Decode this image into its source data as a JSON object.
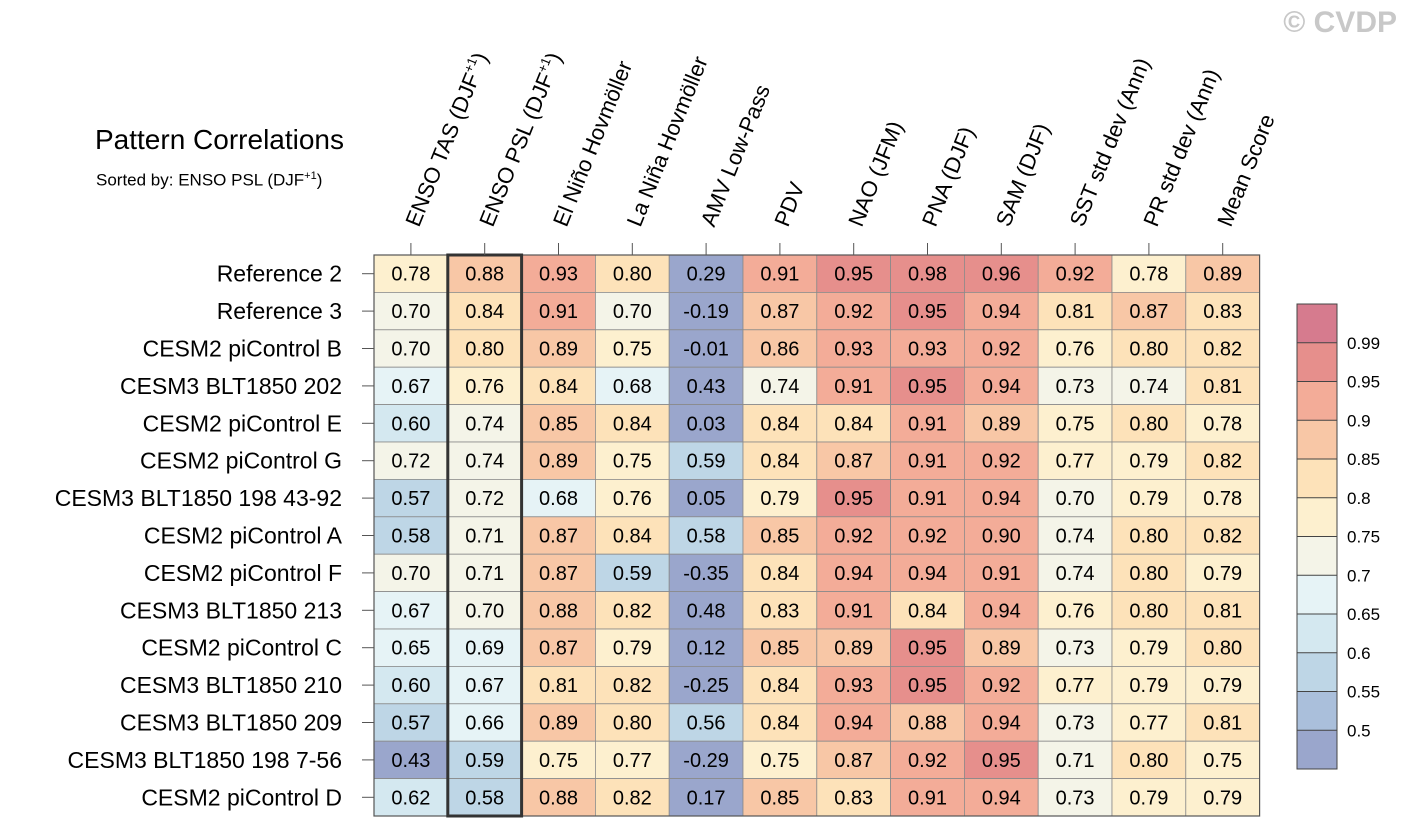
{
  "watermark": "© CVDP",
  "title": "Pattern Correlations",
  "subtitle_prefix": "Sorted by: ENSO PSL (DJF",
  "subtitle_sup": "+1",
  "subtitle_suffix": ")",
  "chart_data": {
    "type": "heatmap",
    "title": "Pattern Correlations",
    "sorted_by": "ENSO PSL (DJF+1)",
    "highlighted_column": 1,
    "columns": [
      {
        "label": "ENSO TAS (DJF",
        "sup": "+1",
        "suffix": ")"
      },
      {
        "label": "ENSO PSL (DJF",
        "sup": "+1",
        "suffix": ")"
      },
      {
        "label": "El Niño Hovmöller",
        "sup": "",
        "suffix": ""
      },
      {
        "label": "La Niña Hovmöller",
        "sup": "",
        "suffix": ""
      },
      {
        "label": "AMV Low-Pass",
        "sup": "",
        "suffix": ""
      },
      {
        "label": "PDV",
        "sup": "",
        "suffix": ""
      },
      {
        "label": "NAO (JFM)",
        "sup": "",
        "suffix": ""
      },
      {
        "label": "PNA (DJF)",
        "sup": "",
        "suffix": ""
      },
      {
        "label": "SAM (DJF)",
        "sup": "",
        "suffix": ""
      },
      {
        "label": "SST std dev (Ann)",
        "sup": "",
        "suffix": ""
      },
      {
        "label": "PR std dev (Ann)",
        "sup": "",
        "suffix": ""
      },
      {
        "label": "Mean Score",
        "sup": "",
        "suffix": ""
      }
    ],
    "rows": [
      "Reference 2",
      "Reference 3",
      "CESM2 piControl B",
      "CESM3 BLT1850 202",
      "CESM2 piControl E",
      "CESM2 piControl G",
      "CESM3 BLT1850 198 43-92",
      "CESM2 piControl A",
      "CESM2 piControl F",
      "CESM3 BLT1850 213",
      "CESM2 piControl C",
      "CESM3 BLT1850 210",
      "CESM3 BLT1850 209",
      "CESM3 BLT1850 198 7-56",
      "CESM2 piControl D"
    ],
    "values": [
      [
        "0.78",
        "0.88",
        "0.93",
        "0.80",
        "0.29",
        "0.91",
        "0.95",
        "0.98",
        "0.96",
        "0.92",
        "0.78",
        "0.89"
      ],
      [
        "0.70",
        "0.84",
        "0.91",
        "0.70",
        "-0.19",
        "0.87",
        "0.92",
        "0.95",
        "0.94",
        "0.81",
        "0.87",
        "0.83"
      ],
      [
        "0.70",
        "0.80",
        "0.89",
        "0.75",
        "-0.01",
        "0.86",
        "0.93",
        "0.93",
        "0.92",
        "0.76",
        "0.80",
        "0.82"
      ],
      [
        "0.67",
        "0.76",
        "0.84",
        "0.68",
        "0.43",
        "0.74",
        "0.91",
        "0.95",
        "0.94",
        "0.73",
        "0.74",
        "0.81"
      ],
      [
        "0.60",
        "0.74",
        "0.85",
        "0.84",
        "0.03",
        "0.84",
        "0.84",
        "0.91",
        "0.89",
        "0.75",
        "0.80",
        "0.78"
      ],
      [
        "0.72",
        "0.74",
        "0.89",
        "0.75",
        "0.59",
        "0.84",
        "0.87",
        "0.91",
        "0.92",
        "0.77",
        "0.79",
        "0.82"
      ],
      [
        "0.57",
        "0.72",
        "0.68",
        "0.76",
        "0.05",
        "0.79",
        "0.95",
        "0.91",
        "0.94",
        "0.70",
        "0.79",
        "0.78"
      ],
      [
        "0.58",
        "0.71",
        "0.87",
        "0.84",
        "0.58",
        "0.85",
        "0.92",
        "0.92",
        "0.90",
        "0.74",
        "0.80",
        "0.82"
      ],
      [
        "0.70",
        "0.71",
        "0.87",
        "0.59",
        "-0.35",
        "0.84",
        "0.94",
        "0.94",
        "0.91",
        "0.74",
        "0.80",
        "0.79"
      ],
      [
        "0.67",
        "0.70",
        "0.88",
        "0.82",
        "0.48",
        "0.83",
        "0.91",
        "0.84",
        "0.94",
        "0.76",
        "0.80",
        "0.81"
      ],
      [
        "0.65",
        "0.69",
        "0.87",
        "0.79",
        "0.12",
        "0.85",
        "0.89",
        "0.95",
        "0.89",
        "0.73",
        "0.79",
        "0.80"
      ],
      [
        "0.60",
        "0.67",
        "0.81",
        "0.82",
        "-0.25",
        "0.84",
        "0.93",
        "0.95",
        "0.92",
        "0.77",
        "0.79",
        "0.79"
      ],
      [
        "0.57",
        "0.66",
        "0.89",
        "0.80",
        "0.56",
        "0.84",
        "0.94",
        "0.88",
        "0.94",
        "0.73",
        "0.77",
        "0.81"
      ],
      [
        "0.43",
        "0.59",
        "0.75",
        "0.77",
        "-0.29",
        "0.75",
        "0.87",
        "0.92",
        "0.95",
        "0.71",
        "0.80",
        "0.75"
      ],
      [
        "0.62",
        "0.58",
        "0.88",
        "0.82",
        "0.17",
        "0.85",
        "0.83",
        "0.91",
        "0.94",
        "0.73",
        "0.79",
        "0.79"
      ]
    ],
    "colorbar": {
      "levels": [
        0.5,
        0.55,
        0.6,
        0.65,
        0.7,
        0.75,
        0.8,
        0.85,
        0.9,
        0.95,
        0.99
      ],
      "level_labels": [
        "0.5",
        "0.55",
        "0.6",
        "0.65",
        "0.7",
        "0.75",
        "0.8",
        "0.85",
        "0.9",
        "0.95",
        "0.99"
      ],
      "colors": [
        "#9aa6cc",
        "#aabfdb",
        "#bed6e6",
        "#d4e8f0",
        "#e6f3f6",
        "#f4f4e8",
        "#fdf0cf",
        "#fde2b9",
        "#f8c7a6",
        "#f3ac98",
        "#e68f8c",
        "#d67b8e"
      ]
    }
  }
}
